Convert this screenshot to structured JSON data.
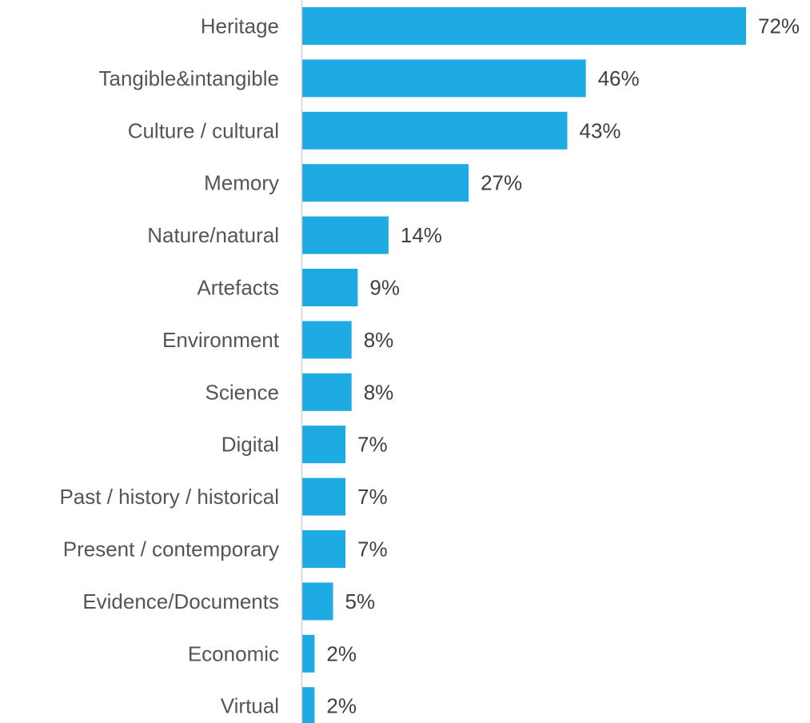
{
  "chart_data": {
    "type": "bar",
    "orientation": "horizontal",
    "categories": [
      "Heritage",
      "Tangible&intangible",
      "Culture / cultural",
      "Memory",
      "Nature/natural",
      "Artefacts",
      "Environment",
      "Science",
      "Digital",
      "Past / history / historical",
      "Present / contemporary",
      "Evidence/Documents",
      "Economic",
      "Virtual"
    ],
    "values": [
      72,
      46,
      43,
      27,
      14,
      9,
      8,
      8,
      7,
      7,
      7,
      5,
      2,
      2
    ],
    "value_labels": [
      "72%",
      "46%",
      "43%",
      "27%",
      "14%",
      "9%",
      "8%",
      "8%",
      "7%",
      "7%",
      "7%",
      "5%",
      "2%",
      "2%"
    ],
    "unit": "%",
    "title": "",
    "xlabel": "",
    "ylabel": "",
    "xlim": [
      0,
      72
    ],
    "grid": false,
    "legend": "none",
    "colors": {
      "bar": "#1eaae2",
      "axis": "#d0d0d0",
      "category_text": "#555555",
      "value_text": "#404040"
    }
  }
}
